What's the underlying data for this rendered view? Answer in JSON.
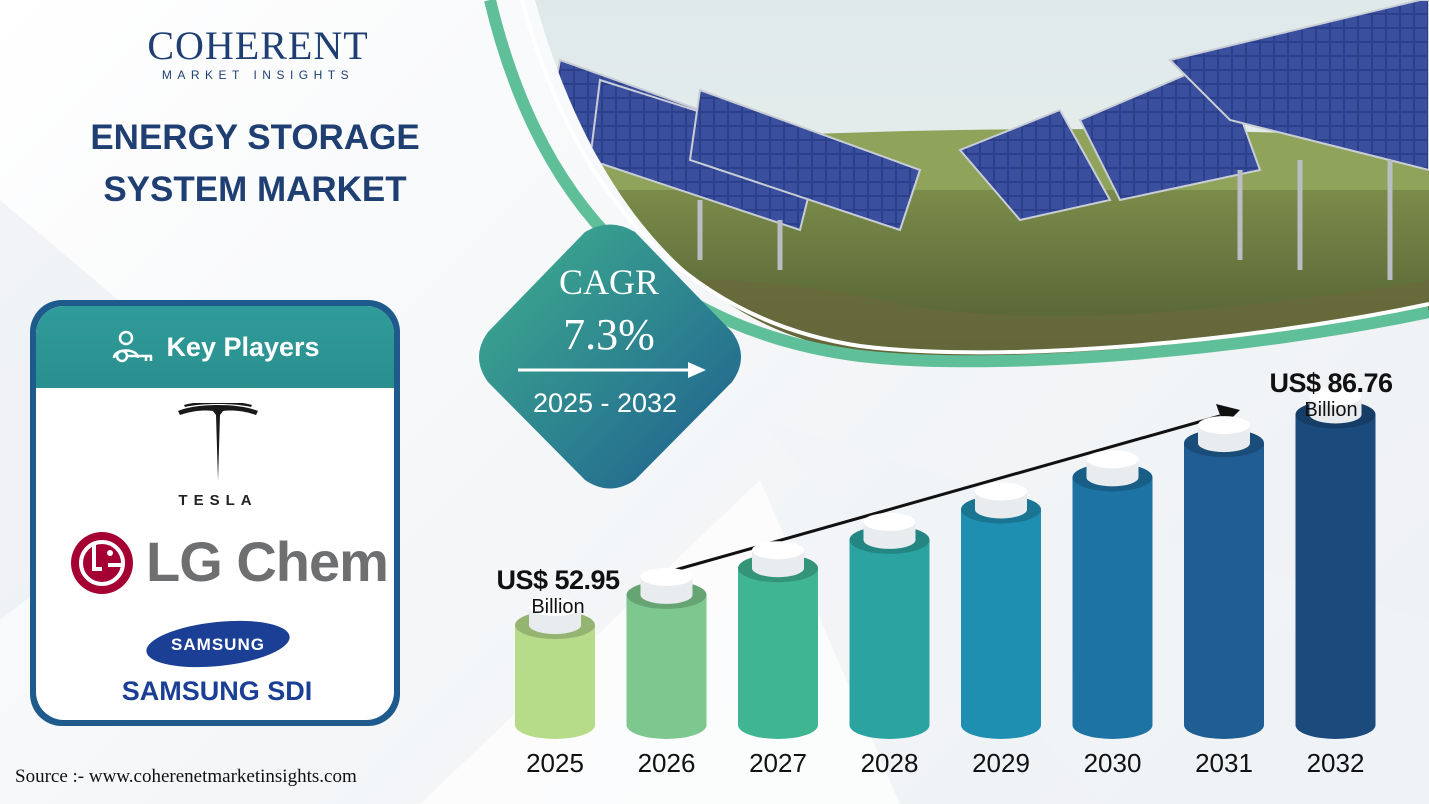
{
  "brand": {
    "name_main": "COHERENT",
    "name_sub": "MARKET INSIGHTS"
  },
  "title_line1": "ENERGY STORAGE",
  "title_line2": "SYSTEM MARKET",
  "key_players": {
    "heading": "Key Players",
    "players": [
      "TESLA",
      "LG Chem",
      "SAMSUNG",
      "SAMSUNG SDI"
    ]
  },
  "cagr": {
    "label": "CAGR",
    "value": "7.3%",
    "period": "2025 - 2032"
  },
  "callouts": {
    "start_value": "US$ 52.95",
    "start_unit": "Billion",
    "end_value": "US$ 86.76",
    "end_unit": "Billion"
  },
  "source": "Source :- www.coherenetmarketinsights.com",
  "colors": {
    "navy": "#1f3f73",
    "teal": "#2f9c9a",
    "bars": [
      "#b6dc8a",
      "#7cc88e",
      "#3fb592",
      "#2ba3a0",
      "#1f8fb1",
      "#1e73a5",
      "#1f5d92",
      "#1b4a7c"
    ]
  },
  "chart_data": {
    "type": "bar",
    "title": "Energy Storage System Market",
    "unit": "US$ Billion",
    "categories": [
      "2025",
      "2026",
      "2027",
      "2028",
      "2029",
      "2030",
      "2031",
      "2032"
    ],
    "values": [
      52.95,
      57.8,
      62.0,
      66.5,
      71.4,
      76.6,
      82.2,
      86.76
    ],
    "labeled_values": {
      "2025": "US$ 52.95 Billion",
      "2032": "US$ 86.76 Billion"
    },
    "cagr": "7.3%",
    "ylim": [
      40,
      90
    ]
  }
}
